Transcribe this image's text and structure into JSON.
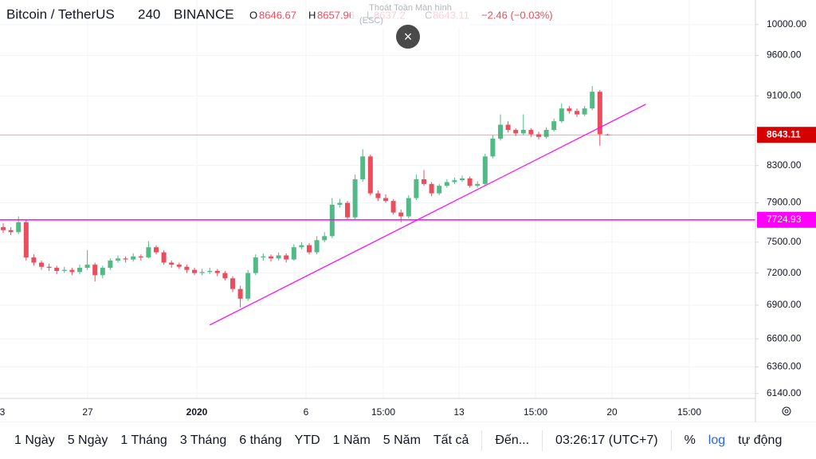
{
  "header": {
    "symbol": "Bitcoin / TetherUS",
    "interval": "240",
    "exchange": "BINANCE",
    "o_label": "O",
    "h_label": "H",
    "l_label": "L",
    "c_label": "C",
    "change": "−2.46 (−0.03%)"
  },
  "toast": {
    "title": "Thoát Toàn Màn hình",
    "key": "(ESC)",
    "close": "×"
  },
  "time_axis": [
    "3",
    "27",
    "2020",
    "6",
    "15:00",
    "13",
    "15:00",
    "20",
    "15:00"
  ],
  "toolbar": {
    "ranges": [
      "1 Ngày",
      "5 Ngày",
      "1 Tháng",
      "3 Tháng",
      "6 tháng",
      "YTD",
      "1 Năm",
      "5 Năm",
      "Tất cả"
    ],
    "goto": "Đến...",
    "clock": "03:26:17 (UTC+7)",
    "percent": "%",
    "log": "log",
    "auto": "tự động"
  },
  "chart_data": {
    "type": "candlestick",
    "log": true,
    "grid": true,
    "up_color": "#53b987",
    "down_color": "#eb4d5c",
    "ylim": [
      6100,
      10330
    ],
    "yticks": [
      {
        "value": 10000,
        "label": "10000.00"
      },
      {
        "value": 9600,
        "label": "9600.00"
      },
      {
        "value": 9100,
        "label": "9100.00"
      },
      {
        "value": 8300,
        "label": "8300.00"
      },
      {
        "value": 7900,
        "label": "7900.00"
      },
      {
        "value": 7500,
        "label": "7500.00"
      },
      {
        "value": 7200,
        "label": "7200.00"
      },
      {
        "value": 6900,
        "label": "6900.00"
      },
      {
        "value": 6600,
        "label": "6600.00"
      },
      {
        "value": 6360,
        "label": "6360.00"
      },
      {
        "value": 6140,
        "label": "6140.00"
      }
    ],
    "hline": {
      "value": 7724.93,
      "color": "#ff00ff"
    },
    "trendline": {
      "x": [
        27,
        84
      ],
      "values": [
        6722,
        9000
      ],
      "color": "#ff00ff"
    },
    "candles": [
      [
        7650,
        7690,
        7590,
        7620
      ],
      [
        7620,
        7650,
        7570,
        7600
      ],
      [
        7600,
        7760,
        7580,
        7700
      ],
      [
        7700,
        7720,
        7320,
        7350
      ],
      [
        7350,
        7380,
        7270,
        7300
      ],
      [
        7300,
        7320,
        7230,
        7260
      ],
      [
        7260,
        7290,
        7220,
        7250
      ],
      [
        7250,
        7270,
        7190,
        7220
      ],
      [
        7220,
        7260,
        7200,
        7230
      ],
      [
        7230,
        7250,
        7180,
        7210
      ],
      [
        7210,
        7280,
        7190,
        7250
      ],
      [
        7250,
        7420,
        7230,
        7280
      ],
      [
        7280,
        7300,
        7120,
        7180
      ],
      [
        7180,
        7270,
        7150,
        7250
      ],
      [
        7250,
        7340,
        7230,
        7320
      ],
      [
        7320,
        7370,
        7300,
        7340
      ],
      [
        7340,
        7360,
        7300,
        7330
      ],
      [
        7330,
        7390,
        7310,
        7360
      ],
      [
        7360,
        7380,
        7320,
        7350
      ],
      [
        7350,
        7510,
        7340,
        7450
      ],
      [
        7450,
        7470,
        7380,
        7400
      ],
      [
        7400,
        7420,
        7280,
        7300
      ],
      [
        7300,
        7320,
        7250,
        7280
      ],
      [
        7280,
        7300,
        7240,
        7260
      ],
      [
        7260,
        7280,
        7200,
        7230
      ],
      [
        7230,
        7250,
        7180,
        7200
      ],
      [
        7200,
        7240,
        7180,
        7210
      ],
      [
        7210,
        7250,
        7190,
        7220
      ],
      [
        7220,
        7240,
        7170,
        7200
      ],
      [
        7200,
        7220,
        7130,
        7150
      ],
      [
        7150,
        7170,
        7020,
        7050
      ],
      [
        7050,
        7080,
        6880,
        6960
      ],
      [
        6960,
        7230,
        6940,
        7200
      ],
      [
        7200,
        7380,
        7180,
        7350
      ],
      [
        7350,
        7390,
        7320,
        7360
      ],
      [
        7360,
        7380,
        7310,
        7340
      ],
      [
        7340,
        7400,
        7320,
        7370
      ],
      [
        7370,
        7390,
        7300,
        7330
      ],
      [
        7330,
        7480,
        7320,
        7450
      ],
      [
        7450,
        7500,
        7430,
        7470
      ],
      [
        7470,
        7490,
        7380,
        7400
      ],
      [
        7400,
        7560,
        7380,
        7520
      ],
      [
        7520,
        7600,
        7500,
        7560
      ],
      [
        7560,
        7950,
        7540,
        7880
      ],
      [
        7880,
        7940,
        7850,
        7900
      ],
      [
        7900,
        7920,
        7720,
        7750
      ],
      [
        7750,
        8200,
        7730,
        8150
      ],
      [
        8150,
        8480,
        8120,
        8400
      ],
      [
        8400,
        8420,
        7980,
        8000
      ],
      [
        8000,
        8030,
        7920,
        7950
      ],
      [
        7950,
        7990,
        7900,
        7920
      ],
      [
        7920,
        7940,
        7780,
        7800
      ],
      [
        7800,
        7830,
        7700,
        7760
      ],
      [
        7760,
        7980,
        7740,
        7950
      ],
      [
        7950,
        8200,
        7930,
        8150
      ],
      [
        8150,
        8250,
        8080,
        8100
      ],
      [
        8100,
        8120,
        7970,
        8000
      ],
      [
        8000,
        8100,
        7980,
        8080
      ],
      [
        8080,
        8150,
        8060,
        8120
      ],
      [
        8120,
        8170,
        8100,
        8140
      ],
      [
        8140,
        8190,
        8120,
        8160
      ],
      [
        8160,
        8180,
        8060,
        8080
      ],
      [
        8080,
        8130,
        8060,
        8100
      ],
      [
        8100,
        8430,
        8080,
        8400
      ],
      [
        8400,
        8640,
        8380,
        8600
      ],
      [
        8600,
        8880,
        8580,
        8760
      ],
      [
        8760,
        8800,
        8670,
        8700
      ],
      [
        8700,
        8720,
        8630,
        8660
      ],
      [
        8660,
        8880,
        8640,
        8700
      ],
      [
        8700,
        8720,
        8620,
        8650
      ],
      [
        8650,
        8680,
        8590,
        8620
      ],
      [
        8620,
        8730,
        8600,
        8700
      ],
      [
        8700,
        8830,
        8680,
        8800
      ],
      [
        8800,
        9010,
        8780,
        8950
      ],
      [
        8950,
        8980,
        8890,
        8920
      ],
      [
        8920,
        8950,
        8850,
        8880
      ],
      [
        8880,
        8980,
        8860,
        8950
      ],
      [
        8950,
        9220,
        8930,
        9150
      ],
      [
        9150,
        9170,
        8520,
        8650
      ],
      [
        8646.67,
        8657.96,
        8637.2,
        8643.11
      ]
    ]
  }
}
